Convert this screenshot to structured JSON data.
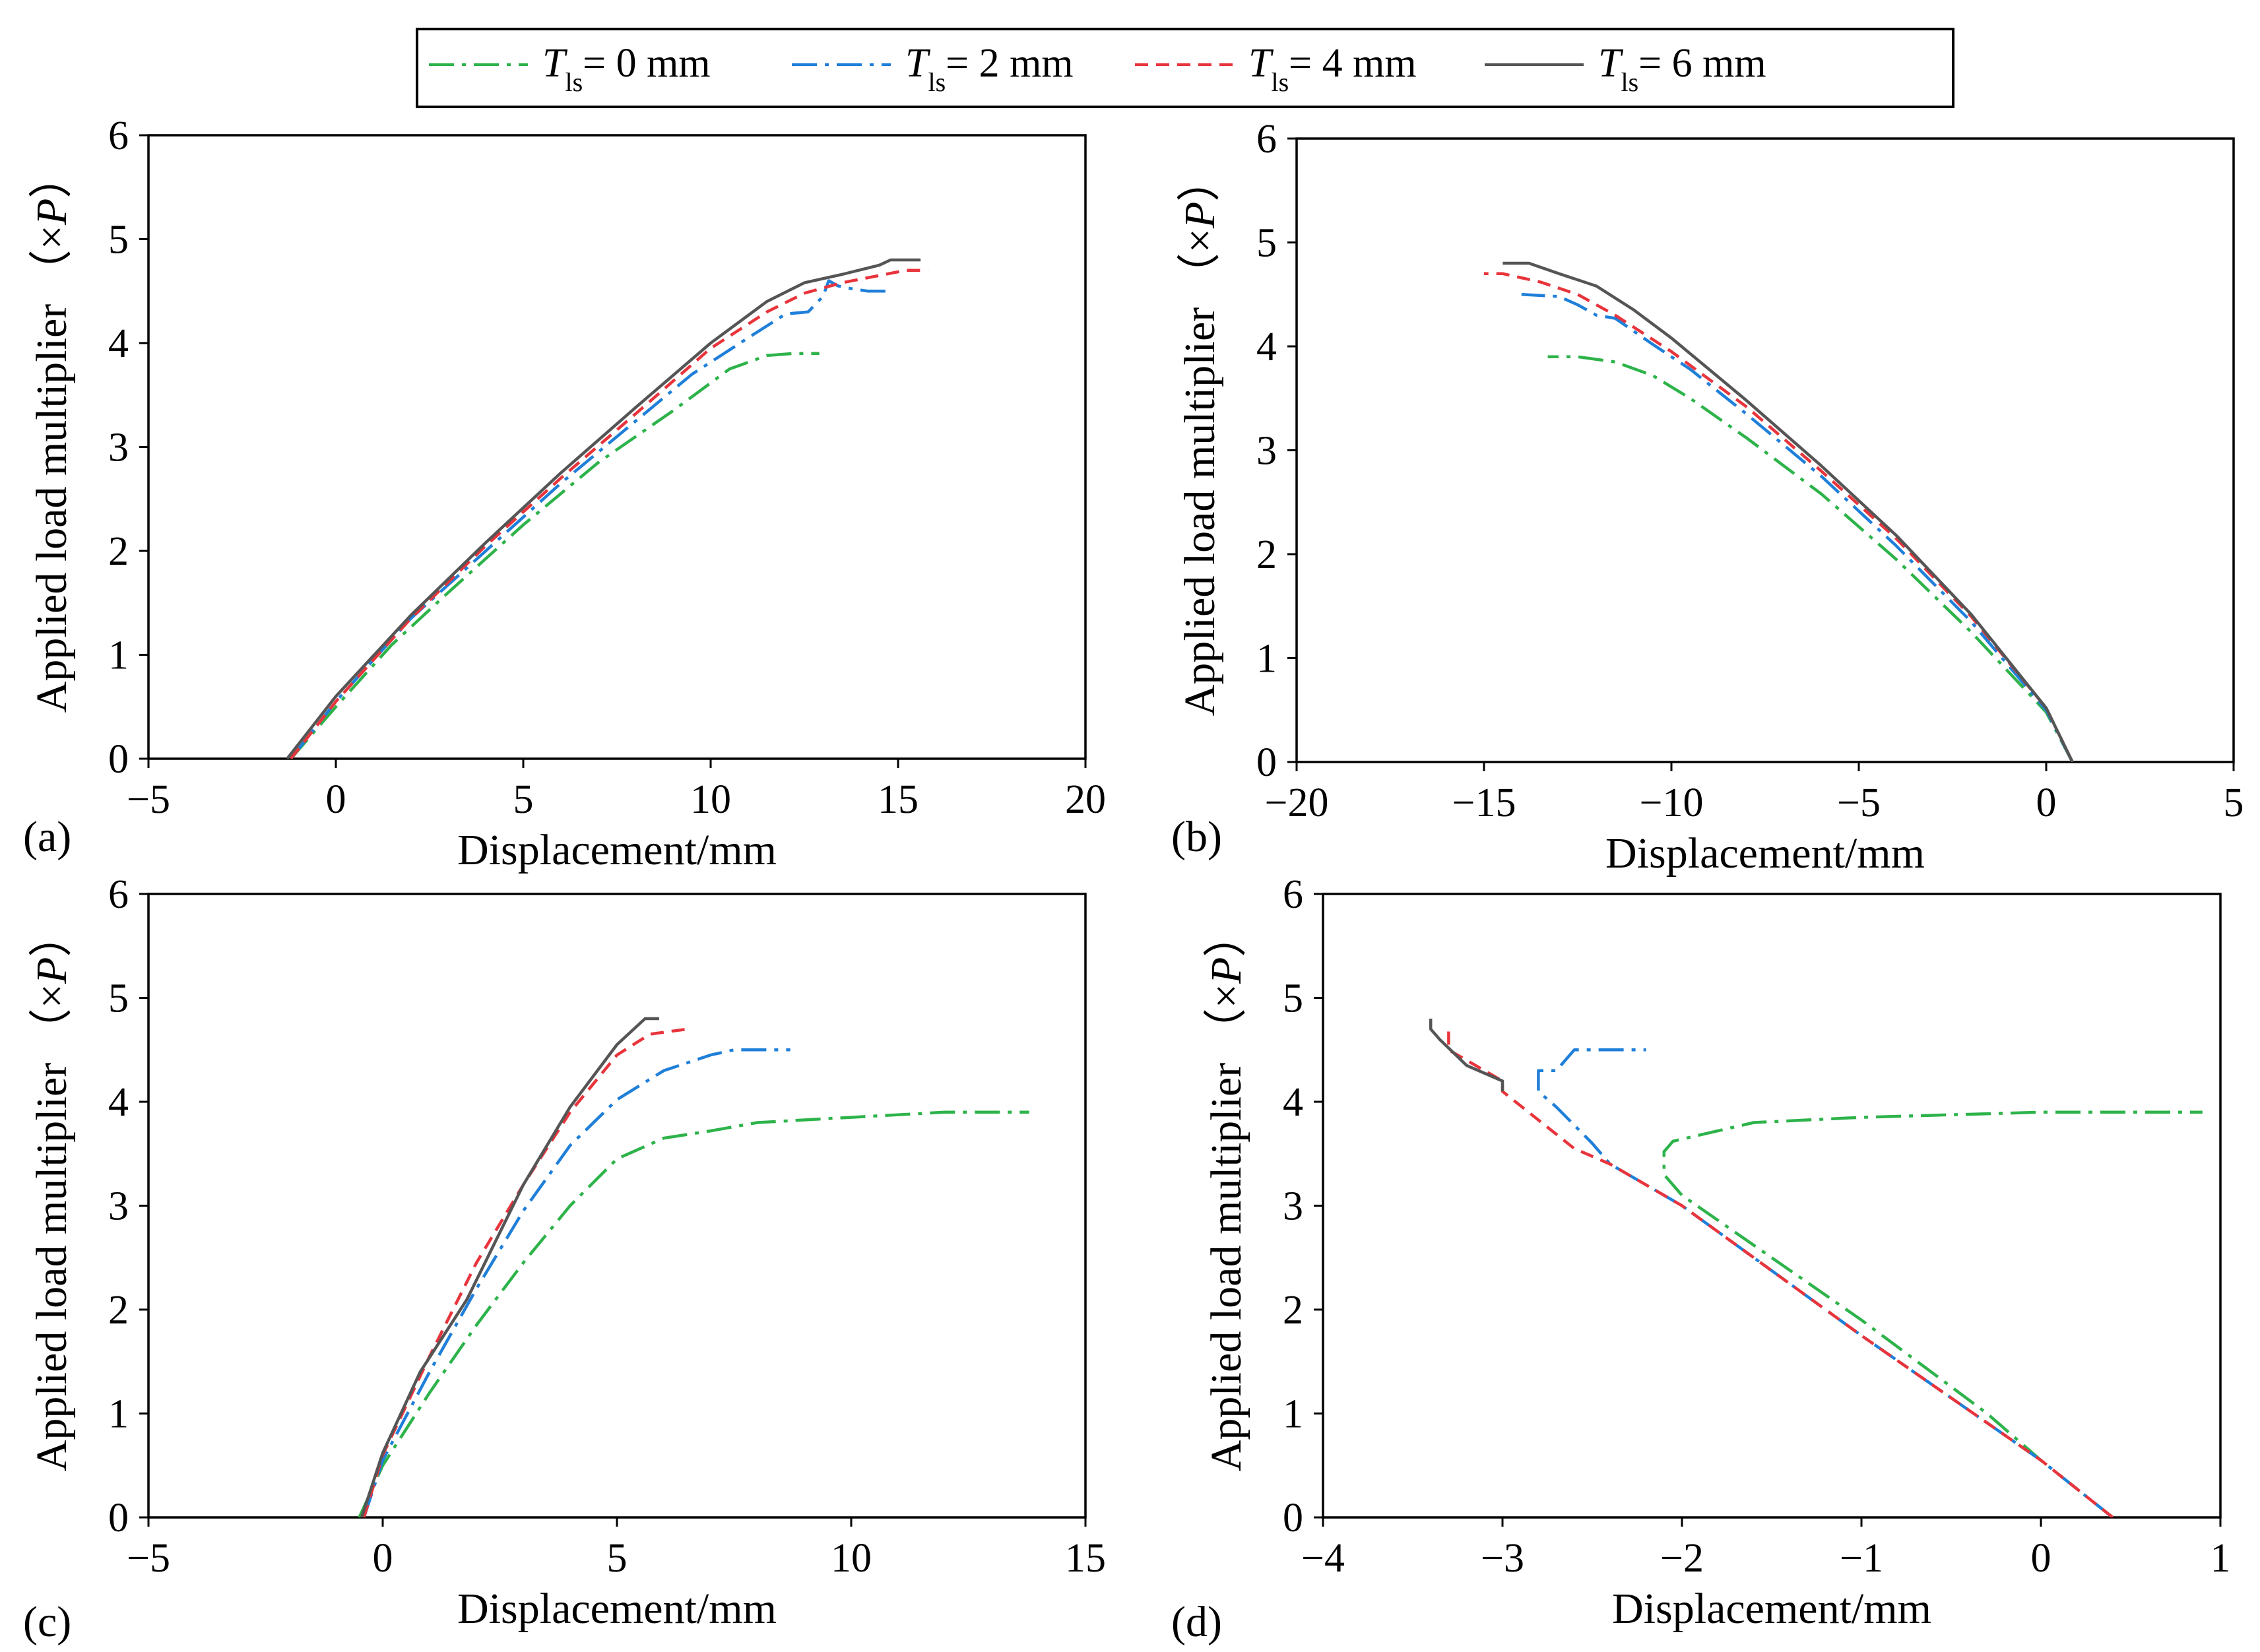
{
  "legend": {
    "entries": [
      {
        "var": "T",
        "sub": "ls",
        "rest": "= 0 mm",
        "color": "#2db34a",
        "dash": "dashdot"
      },
      {
        "var": "T",
        "sub": "ls",
        "rest": "= 2 mm",
        "color": "#1f7fd9",
        "dash": "dashdot"
      },
      {
        "var": "T",
        "sub": "ls",
        "rest": "= 4 mm",
        "color": "#e8343c",
        "dash": "dashed"
      },
      {
        "var": "T",
        "sub": "ls",
        "rest": "= 6 mm",
        "color": "#555555",
        "dash": "solid"
      }
    ]
  },
  "chart_data": [
    {
      "panel": "(a)",
      "type": "line",
      "xlabel": "Displacement/mm",
      "ylabel_text": "Applied load multiplier",
      "ylabel_unit_open": "（×",
      "ylabel_unit_var": "P",
      "ylabel_unit_close": "）",
      "xlim": [
        -5,
        20
      ],
      "ylim": [
        0,
        6
      ],
      "xticks": [
        -5,
        0,
        5,
        10,
        15,
        20
      ],
      "xtick_labels": [
        "−5",
        "0",
        "5",
        "10",
        "15",
        "20"
      ],
      "yticks": [
        0,
        1,
        2,
        3,
        4,
        5,
        6
      ],
      "ytick_labels": [
        "0",
        "1",
        "2",
        "3",
        "4",
        "5",
        "6"
      ],
      "series": [
        {
          "name": "T_ls = 0 mm",
          "x": [
            -1.2,
            0,
            1.5,
            3,
            5,
            7,
            9,
            10.5,
            11.5,
            12.2,
            12.9
          ],
          "y": [
            0,
            0.5,
            1.1,
            1.6,
            2.25,
            2.85,
            3.35,
            3.75,
            3.88,
            3.9,
            3.9
          ]
        },
        {
          "name": "T_ls = 2 mm",
          "x": [
            -1.2,
            0,
            2,
            4,
            6,
            8,
            9.5,
            11,
            12,
            12.6,
            13,
            13.15,
            13.4,
            13.8,
            14.2,
            14.8
          ],
          "y": [
            0,
            0.55,
            1.35,
            2.0,
            2.65,
            3.25,
            3.7,
            4.05,
            4.28,
            4.3,
            4.45,
            4.6,
            4.55,
            4.52,
            4.5,
            4.5
          ]
        },
        {
          "name": "T_ls = 4 mm",
          "x": [
            -1.2,
            0,
            2,
            4,
            6,
            8,
            10,
            11.5,
            12.5,
            13.5,
            14.5,
            15.2,
            15.8
          ],
          "y": [
            0,
            0.55,
            1.35,
            2.05,
            2.7,
            3.32,
            3.95,
            4.3,
            4.48,
            4.58,
            4.65,
            4.7,
            4.7
          ]
        },
        {
          "name": "T_ls = 6 mm",
          "x": [
            -1.3,
            0,
            2,
            4,
            6,
            8,
            10,
            11.5,
            12.5,
            13.5,
            14.5,
            14.8,
            15.6
          ],
          "y": [
            0,
            0.6,
            1.38,
            2.08,
            2.75,
            3.38,
            4.0,
            4.4,
            4.58,
            4.66,
            4.75,
            4.8,
            4.8
          ]
        }
      ]
    },
    {
      "panel": "(b)",
      "type": "line",
      "xlabel": "Displacement/mm",
      "ylabel_text": "Applied load multiplier",
      "ylabel_unit_open": "（×",
      "ylabel_unit_var": "P",
      "ylabel_unit_close": "）",
      "xlim": [
        -20,
        5
      ],
      "ylim": [
        0,
        6
      ],
      "xticks": [
        -20,
        -15,
        -10,
        -5,
        0,
        5
      ],
      "xtick_labels": [
        "−20",
        "−15",
        "−10",
        "−5",
        "0",
        "5"
      ],
      "yticks": [
        0,
        1,
        2,
        3,
        4,
        5,
        6
      ],
      "ytick_labels": [
        "0",
        "1",
        "2",
        "3",
        "4",
        "5",
        "6"
      ],
      "series": [
        {
          "name": "T_ls = 0 mm",
          "x": [
            0.7,
            0,
            -2,
            -4,
            -6,
            -8,
            -9.5,
            -10.5,
            -11.5,
            -12.5,
            -13.3
          ],
          "y": [
            0,
            0.48,
            1.25,
            1.95,
            2.58,
            3.12,
            3.5,
            3.72,
            3.85,
            3.9,
            3.9
          ]
        },
        {
          "name": "T_ls = 2 mm",
          "x": [
            0.7,
            0,
            -2,
            -4,
            -6,
            -8,
            -9.5,
            -10.5,
            -11.5,
            -12,
            -12.5,
            -13,
            -14
          ],
          "y": [
            0,
            0.5,
            1.35,
            2.08,
            2.75,
            3.35,
            3.78,
            4.02,
            4.27,
            4.3,
            4.4,
            4.48,
            4.5
          ]
        },
        {
          "name": "T_ls = 4 mm",
          "x": [
            0.7,
            0,
            -2,
            -4,
            -6,
            -8,
            -10,
            -11.5,
            -12.5,
            -13.5,
            -14.5,
            -15
          ],
          "y": [
            0,
            0.52,
            1.4,
            2.15,
            2.8,
            3.42,
            3.95,
            4.3,
            4.5,
            4.62,
            4.7,
            4.7
          ]
        },
        {
          "name": "T_ls = 6 mm",
          "x": [
            0.7,
            0,
            -2,
            -4,
            -6,
            -8,
            -10,
            -11,
            -12,
            -13,
            -13.8,
            -14.5
          ],
          "y": [
            0,
            0.52,
            1.42,
            2.18,
            2.85,
            3.48,
            4.08,
            4.35,
            4.58,
            4.7,
            4.8,
            4.8
          ]
        }
      ]
    },
    {
      "panel": "(c)",
      "type": "line",
      "xlabel": "Displacement/mm",
      "ylabel_text": "Applied load multiplier",
      "ylabel_unit_open": "（×",
      "ylabel_unit_var": "P",
      "ylabel_unit_close": "）",
      "xlim": [
        -5,
        15
      ],
      "ylim": [
        0,
        6
      ],
      "xticks": [
        -5,
        0,
        5,
        10,
        15
      ],
      "xtick_labels": [
        "−5",
        "0",
        "5",
        "10",
        "15"
      ],
      "yticks": [
        0,
        1,
        2,
        3,
        4,
        5,
        6
      ],
      "ytick_labels": [
        "0",
        "1",
        "2",
        "3",
        "4",
        "5",
        "6"
      ],
      "series": [
        {
          "name": "T_ls = 0 mm",
          "x": [
            -0.5,
            0,
            1,
            2,
            3,
            4,
            5,
            6,
            7,
            8,
            10,
            12,
            13.8
          ],
          "y": [
            0,
            0.5,
            1.2,
            1.85,
            2.45,
            3.0,
            3.45,
            3.65,
            3.72,
            3.8,
            3.85,
            3.9,
            3.9
          ]
        },
        {
          "name": "T_ls = 2 mm",
          "x": [
            -0.4,
            0,
            1,
            2,
            3,
            4,
            5,
            6,
            7,
            7.5,
            8.7
          ],
          "y": [
            0,
            0.55,
            1.4,
            2.2,
            2.95,
            3.58,
            4.02,
            4.3,
            4.45,
            4.5,
            4.5
          ]
        },
        {
          "name": "T_ls = 4 mm",
          "x": [
            -0.4,
            0,
            1,
            2,
            3,
            4,
            5,
            5.7,
            6.5
          ],
          "y": [
            0,
            0.6,
            1.55,
            2.45,
            3.2,
            3.9,
            4.45,
            4.65,
            4.7
          ]
        },
        {
          "name": "T_ls = 6 mm",
          "x": [
            -0.45,
            0,
            0.8,
            1.8,
            3,
            4,
            5,
            5.6,
            5.9
          ],
          "y": [
            0,
            0.62,
            1.4,
            2.1,
            3.2,
            3.95,
            4.55,
            4.8,
            4.8
          ]
        }
      ]
    },
    {
      "panel": "(d)",
      "type": "line",
      "xlabel": "Displacement/mm",
      "ylabel_text": "Applied load multiplier",
      "ylabel_unit_open": "（×",
      "ylabel_unit_var": "P",
      "ylabel_unit_close": "）",
      "xlim": [
        -4,
        1
      ],
      "ylim": [
        0,
        6
      ],
      "xticks": [
        -4,
        -3,
        -2,
        -1,
        0,
        1
      ],
      "xtick_labels": [
        "−4",
        "−3",
        "−2",
        "−1",
        "0",
        "1"
      ],
      "yticks": [
        0,
        1,
        2,
        3,
        4,
        5,
        6
      ],
      "ytick_labels": [
        "0",
        "1",
        "2",
        "3",
        "4",
        "5",
        "6"
      ],
      "series": [
        {
          "name": "T_ls = 0 mm",
          "x": [
            0.4,
            0,
            -0.3,
            -1,
            -2,
            -2.1,
            -2.1,
            -2.05,
            -1.6,
            -1,
            0,
            0.9
          ],
          "y": [
            0,
            0.55,
            1.0,
            1.9,
            3.1,
            3.3,
            3.52,
            3.62,
            3.8,
            3.85,
            3.9,
            3.9
          ]
        },
        {
          "name": "T_ls = 2 mm",
          "x": [
            0.4,
            0,
            -1,
            -2,
            -2.4,
            -2.5,
            -2.7,
            -2.8,
            -2.8,
            -2.7,
            -2.6,
            -2.2
          ],
          "y": [
            0,
            0.55,
            1.75,
            3.0,
            3.4,
            3.6,
            3.95,
            4.1,
            4.3,
            4.3,
            4.5,
            4.5
          ]
        },
        {
          "name": "T_ls = 4 mm",
          "x": [
            0.4,
            0,
            -1,
            -2,
            -2.4,
            -2.6,
            -3,
            -3,
            -3.3,
            -3.3
          ],
          "y": [
            0,
            0.55,
            1.75,
            3.0,
            3.4,
            3.55,
            4.1,
            4.2,
            4.5,
            4.7
          ]
        },
        {
          "name": "T_ls = 6 mm",
          "x": [
            -3,
            -3,
            -3.2,
            -3.35,
            -3.4,
            -3.4
          ],
          "y": [
            4.1,
            4.2,
            4.35,
            4.6,
            4.7,
            4.8
          ]
        }
      ]
    }
  ]
}
